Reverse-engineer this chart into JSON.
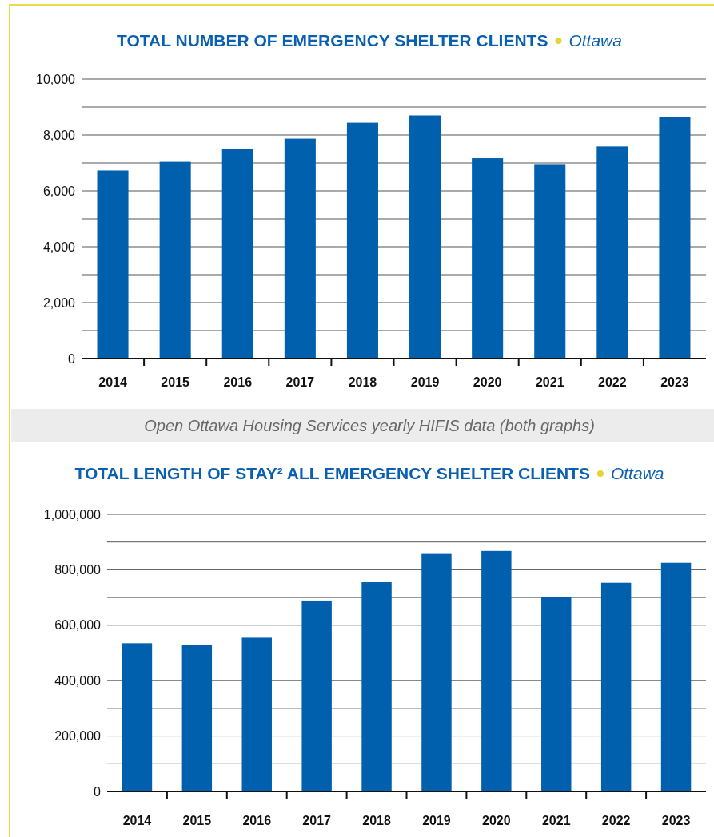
{
  "chart_data": [
    {
      "type": "bar",
      "title": "TOTAL NUMBER OF EMERGENCY SHELTER CLIENTS",
      "subtitle": "Ottawa",
      "categories": [
        "2014",
        "2015",
        "2016",
        "2017",
        "2018",
        "2019",
        "2020",
        "2021",
        "2022",
        "2023"
      ],
      "values": [
        6730,
        7040,
        7500,
        7870,
        8440,
        8700,
        7170,
        6960,
        7590,
        8650
      ],
      "color": "#0060ae",
      "ylim": [
        0,
        10000
      ],
      "yticks": [
        0,
        {
          "value": 1000,
          "label": null
        },
        {
          "value": 2000,
          "label": "2,000"
        },
        {
          "value": 3000,
          "label": null
        },
        {
          "value": 4000,
          "label": "4,000"
        },
        {
          "value": 5000,
          "label": null
        },
        {
          "value": 6000,
          "label": "6,000"
        },
        {
          "value": 7000,
          "label": null
        },
        {
          "value": 8000,
          "label": "8,000"
        },
        {
          "value": 9000,
          "label": null
        },
        {
          "value": 10000,
          "label": "10,000"
        }
      ],
      "grid": true,
      "annotations": [
        "Open Ottawa Housing Services yearly HIFIS data (both graphs)"
      ]
    },
    {
      "type": "bar",
      "title": "TOTAL LENGTH OF STAY² ALL EMERGENCY SHELTER CLIENTS",
      "subtitle": "Ottawa",
      "categories": [
        "2014",
        "2015",
        "2016",
        "2017",
        "2018",
        "2019",
        "2020",
        "2021",
        "2022",
        "2023"
      ],
      "values": [
        535000,
        529000,
        555000,
        689000,
        755000,
        857000,
        868000,
        703000,
        753000,
        825000
      ],
      "color": "#0060ae",
      "ylim": [
        0,
        1000000
      ],
      "yticks": [
        0,
        {
          "value": 100000,
          "label": null
        },
        {
          "value": 200000,
          "label": "200,000"
        },
        {
          "value": 300000,
          "label": null
        },
        {
          "value": 400000,
          "label": "400,000"
        },
        {
          "value": 500000,
          "label": null
        },
        {
          "value": 600000,
          "label": "600,000"
        },
        {
          "value": 700000,
          "label": null
        },
        {
          "value": 800000,
          "label": "800,000"
        },
        {
          "value": 900000,
          "label": null
        },
        {
          "value": 1000000,
          "label": "1,000,000"
        }
      ],
      "grid": true
    }
  ]
}
